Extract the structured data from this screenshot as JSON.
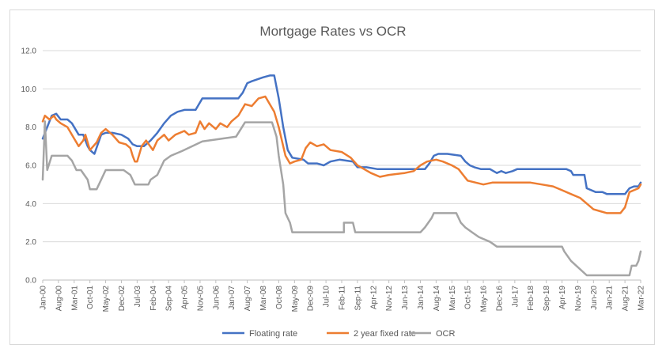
{
  "chart_data": {
    "type": "line",
    "title": "Mortgage Rates vs OCR",
    "xlabel": "",
    "ylabel": "",
    "ylim": [
      0,
      12
    ],
    "yticks": [
      "0.0",
      "2.0",
      "4.0",
      "6.0",
      "8.0",
      "10.0",
      "12.0"
    ],
    "x_start": "Jan-00",
    "x_end": "Mar-22",
    "x_ticks": [
      "Jan-00",
      "Aug-00",
      "Mar-01",
      "Oct-01",
      "May-02",
      "Dec-02",
      "Jul-03",
      "Feb-04",
      "Sep-04",
      "Apr-05",
      "Nov-05",
      "Jun-06",
      "Jan-07",
      "Aug-07",
      "Mar-08",
      "Oct-08",
      "May-09",
      "Dec-09",
      "Jul-10",
      "Feb-11",
      "Sep-11",
      "Apr-12",
      "Nov-12",
      "Jun-13",
      "Jan-14",
      "Aug-14",
      "Mar-15",
      "Oct-15",
      "May-16",
      "Dec-16",
      "Jul-17",
      "Feb-18",
      "Sep-18",
      "Apr-19",
      "Nov-19",
      "Jun-20",
      "Jan-21",
      "Aug-21",
      "Mar-22"
    ],
    "grid": "horizontal",
    "legend_position": "bottom",
    "series": [
      {
        "name": "Floating rate",
        "color": "#4472C4",
        "points": [
          [
            "Jan-00",
            7.4
          ],
          [
            "Mar-00",
            8.0
          ],
          [
            "May-00",
            8.6
          ],
          [
            "Jul-00",
            8.7
          ],
          [
            "Sep-00",
            8.4
          ],
          [
            "Dec-00",
            8.4
          ],
          [
            "Feb-01",
            8.2
          ],
          [
            "May-01",
            7.6
          ],
          [
            "Jul-01",
            7.6
          ],
          [
            "Sep-01",
            7.0
          ],
          [
            "Oct-01",
            6.8
          ],
          [
            "Dec-01",
            6.6
          ],
          [
            "Mar-02",
            7.6
          ],
          [
            "May-02",
            7.7
          ],
          [
            "Aug-02",
            7.7
          ],
          [
            "Dec-02",
            7.6
          ],
          [
            "Mar-03",
            7.4
          ],
          [
            "May-03",
            7.1
          ],
          [
            "Jul-03",
            7.0
          ],
          [
            "Oct-03",
            7.0
          ],
          [
            "Jan-04",
            7.3
          ],
          [
            "Apr-04",
            7.7
          ],
          [
            "Jul-04",
            8.2
          ],
          [
            "Oct-04",
            8.6
          ],
          [
            "Jan-05",
            8.8
          ],
          [
            "Apr-05",
            8.9
          ],
          [
            "Sep-05",
            8.9
          ],
          [
            "Dec-05",
            9.5
          ],
          [
            "Jun-06",
            9.5
          ],
          [
            "Apr-07",
            9.5
          ],
          [
            "Jun-07",
            9.8
          ],
          [
            "Aug-07",
            10.3
          ],
          [
            "Oct-07",
            10.4
          ],
          [
            "Mar-08",
            10.6
          ],
          [
            "Jun-08",
            10.7
          ],
          [
            "Aug-08",
            10.7
          ],
          [
            "Oct-08",
            9.5
          ],
          [
            "Dec-08",
            8.0
          ],
          [
            "Feb-09",
            6.8
          ],
          [
            "Apr-09",
            6.4
          ],
          [
            "Sep-09",
            6.3
          ],
          [
            "Nov-09",
            6.1
          ],
          [
            "Mar-10",
            6.1
          ],
          [
            "Jun-10",
            6.0
          ],
          [
            "Sep-10",
            6.2
          ],
          [
            "Jan-11",
            6.3
          ],
          [
            "Jul-11",
            6.2
          ],
          [
            "Sep-11",
            5.9
          ],
          [
            "Jan-12",
            5.9
          ],
          [
            "Jun-12",
            5.8
          ],
          [
            "Dec-13",
            5.8
          ],
          [
            "Mar-14",
            5.8
          ],
          [
            "May-14",
            6.1
          ],
          [
            "Jul-14",
            6.5
          ],
          [
            "Sep-14",
            6.6
          ],
          [
            "Jan-15",
            6.6
          ],
          [
            "Jul-15",
            6.5
          ],
          [
            "Sep-15",
            6.2
          ],
          [
            "Nov-15",
            6.0
          ],
          [
            "Jan-16",
            5.9
          ],
          [
            "Apr-16",
            5.8
          ],
          [
            "Aug-16",
            5.8
          ],
          [
            "Nov-16",
            5.6
          ],
          [
            "Jan-17",
            5.7
          ],
          [
            "Mar-17",
            5.6
          ],
          [
            "Jun-17",
            5.7
          ],
          [
            "Aug-17",
            5.8
          ],
          [
            "Jun-19",
            5.8
          ],
          [
            "Aug-19",
            5.7
          ],
          [
            "Sep-19",
            5.5
          ],
          [
            "Feb-20",
            5.5
          ],
          [
            "Mar-20",
            4.8
          ],
          [
            "Jul-20",
            4.6
          ],
          [
            "Oct-20",
            4.6
          ],
          [
            "Dec-20",
            4.5
          ],
          [
            "Jun-21",
            4.5
          ],
          [
            "Aug-21",
            4.5
          ],
          [
            "Oct-21",
            4.8
          ],
          [
            "Dec-21",
            4.9
          ],
          [
            "Feb-22",
            4.9
          ],
          [
            "Mar-22",
            5.1
          ]
        ]
      },
      {
        "name": "2 year fixed rate",
        "color": "#ED7D31",
        "points": [
          [
            "Jan-00",
            8.3
          ],
          [
            "Feb-00",
            8.6
          ],
          [
            "Apr-00",
            8.4
          ],
          [
            "Jun-00",
            8.6
          ],
          [
            "Jul-00",
            8.4
          ],
          [
            "Sep-00",
            8.2
          ],
          [
            "Dec-00",
            8.0
          ],
          [
            "Mar-01",
            7.4
          ],
          [
            "May-01",
            7.0
          ],
          [
            "Jul-01",
            7.3
          ],
          [
            "Aug-01",
            7.6
          ],
          [
            "Oct-01",
            6.8
          ],
          [
            "Jan-02",
            7.2
          ],
          [
            "Mar-02",
            7.7
          ],
          [
            "May-02",
            7.9
          ],
          [
            "Aug-02",
            7.6
          ],
          [
            "Nov-02",
            7.2
          ],
          [
            "Feb-03",
            7.1
          ],
          [
            "Apr-03",
            6.9
          ],
          [
            "May-03",
            6.5
          ],
          [
            "Jun-03",
            6.2
          ],
          [
            "Jul-03",
            6.2
          ],
          [
            "Sep-03",
            7.0
          ],
          [
            "Nov-03",
            7.3
          ],
          [
            "Feb-04",
            6.8
          ],
          [
            "Apr-04",
            7.3
          ],
          [
            "Jul-04",
            7.6
          ],
          [
            "Sep-04",
            7.3
          ],
          [
            "Dec-04",
            7.6
          ],
          [
            "Apr-05",
            7.8
          ],
          [
            "Jun-05",
            7.6
          ],
          [
            "Sep-05",
            7.7
          ],
          [
            "Nov-05",
            8.3
          ],
          [
            "Jan-06",
            7.9
          ],
          [
            "Mar-06",
            8.2
          ],
          [
            "Jun-06",
            7.9
          ],
          [
            "Aug-06",
            8.2
          ],
          [
            "Nov-06",
            8.0
          ],
          [
            "Jan-07",
            8.3
          ],
          [
            "Apr-07",
            8.6
          ],
          [
            "Jul-07",
            9.2
          ],
          [
            "Oct-07",
            9.1
          ],
          [
            "Jan-08",
            9.5
          ],
          [
            "Apr-08",
            9.6
          ],
          [
            "Jun-08",
            9.2
          ],
          [
            "Aug-08",
            8.8
          ],
          [
            "Oct-08",
            8.0
          ],
          [
            "Jan-09",
            6.5
          ],
          [
            "Mar-09",
            6.1
          ],
          [
            "May-09",
            6.2
          ],
          [
            "Aug-09",
            6.3
          ],
          [
            "Oct-09",
            6.9
          ],
          [
            "Dec-09",
            7.2
          ],
          [
            "Mar-10",
            7.0
          ],
          [
            "Jun-10",
            7.1
          ],
          [
            "Sep-10",
            6.8
          ],
          [
            "Feb-11",
            6.7
          ],
          [
            "Jun-11",
            6.4
          ],
          [
            "Sep-11",
            6.0
          ],
          [
            "Dec-11",
            5.8
          ],
          [
            "Mar-12",
            5.6
          ],
          [
            "Jul-12",
            5.4
          ],
          [
            "Nov-12",
            5.5
          ],
          [
            "Jun-13",
            5.6
          ],
          [
            "Oct-13",
            5.7
          ],
          [
            "Jan-14",
            6.0
          ],
          [
            "Apr-14",
            6.2
          ],
          [
            "Aug-14",
            6.3
          ],
          [
            "Nov-14",
            6.2
          ],
          [
            "Mar-15",
            6.0
          ],
          [
            "Jun-15",
            5.8
          ],
          [
            "Aug-15",
            5.5
          ],
          [
            "Oct-15",
            5.2
          ],
          [
            "May-16",
            5.0
          ],
          [
            "Sep-16",
            5.1
          ],
          [
            "Jul-17",
            5.1
          ],
          [
            "Feb-18",
            5.1
          ],
          [
            "Jul-18",
            5.0
          ],
          [
            "Dec-18",
            4.9
          ],
          [
            "Apr-19",
            4.7
          ],
          [
            "Aug-19",
            4.5
          ],
          [
            "Dec-19",
            4.3
          ],
          [
            "Mar-20",
            4.0
          ],
          [
            "Jun-20",
            3.7
          ],
          [
            "Sep-20",
            3.6
          ],
          [
            "Dec-20",
            3.5
          ],
          [
            "Feb-21",
            3.5
          ],
          [
            "Jun-21",
            3.5
          ],
          [
            "Aug-21",
            3.8
          ],
          [
            "Oct-21",
            4.6
          ],
          [
            "Dec-21",
            4.7
          ],
          [
            "Feb-22",
            4.8
          ],
          [
            "Mar-22",
            5.0
          ]
        ]
      },
      {
        "name": "OCR",
        "color": "#A5A5A5",
        "points": [
          [
            "Jan-00",
            5.25
          ],
          [
            "Feb-00",
            8.3
          ],
          [
            "Mar-00",
            5.75
          ],
          [
            "May-00",
            6.5
          ],
          [
            "Dec-00",
            6.5
          ],
          [
            "Feb-01",
            6.25
          ],
          [
            "Apr-01",
            5.75
          ],
          [
            "Jun-01",
            5.75
          ],
          [
            "Sep-01",
            5.25
          ],
          [
            "Oct-01",
            4.75
          ],
          [
            "Jan-02",
            4.75
          ],
          [
            "Mar-02",
            5.25
          ],
          [
            "May-02",
            5.75
          ],
          [
            "Jan-03",
            5.75
          ],
          [
            "Apr-03",
            5.5
          ],
          [
            "Jun-03",
            5.0
          ],
          [
            "Dec-03",
            5.0
          ],
          [
            "Jan-04",
            5.25
          ],
          [
            "Apr-04",
            5.5
          ],
          [
            "Jul-04",
            6.25
          ],
          [
            "Oct-04",
            6.5
          ],
          [
            "Mar-05",
            6.75
          ],
          [
            "Dec-05",
            7.25
          ],
          [
            "Mar-07",
            7.5
          ],
          [
            "Jul-07",
            8.25
          ],
          [
            "Jul-08",
            8.25
          ],
          [
            "Sep-08",
            7.5
          ],
          [
            "Oct-08",
            6.5
          ],
          [
            "Dec-08",
            5.0
          ],
          [
            "Jan-09",
            3.5
          ],
          [
            "Mar-09",
            3.0
          ],
          [
            "Apr-09",
            2.5
          ],
          [
            "Mar-11",
            2.5
          ],
          [
            "Mar-11",
            3.0
          ],
          [
            "Jul-11",
            3.0
          ],
          [
            "Aug-11",
            2.5
          ],
          [
            "Jan-14",
            2.5
          ],
          [
            "Mar-14",
            2.75
          ],
          [
            "Jun-14",
            3.25
          ],
          [
            "Jul-14",
            3.5
          ],
          [
            "May-15",
            3.5
          ],
          [
            "Jul-15",
            3.0
          ],
          [
            "Sep-15",
            2.75
          ],
          [
            "Dec-15",
            2.5
          ],
          [
            "Mar-16",
            2.25
          ],
          [
            "Aug-16",
            2.0
          ],
          [
            "Nov-16",
            1.75
          ],
          [
            "Apr-19",
            1.75
          ],
          [
            "May-19",
            1.5
          ],
          [
            "Aug-19",
            1.0
          ],
          [
            "Mar-20",
            0.25
          ],
          [
            "Oct-21",
            0.25
          ],
          [
            "Nov-21",
            0.75
          ],
          [
            "Jan-22",
            0.75
          ],
          [
            "Feb-22",
            1.0
          ],
          [
            "Mar-22",
            1.5
          ]
        ]
      }
    ]
  }
}
